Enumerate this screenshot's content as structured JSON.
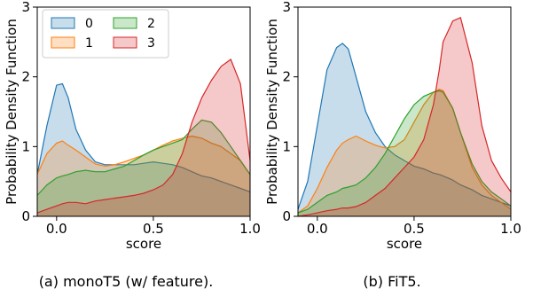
{
  "captions": [
    "(a) monoT5 (w/ feature).",
    "(b) FiT5."
  ],
  "chart_data": [
    {
      "type": "area",
      "subtitle": "(a) monoT5 (w/ feature).",
      "xlabel": "score",
      "ylabel": "Probability Density Function",
      "xlim": [
        -0.1,
        1.0
      ],
      "ylim": [
        0,
        3
      ],
      "xticks": [
        0.0,
        0.5,
        1.0
      ],
      "xtick_labels": [
        "0.0",
        "0.5",
        "1.0"
      ],
      "yticks": [
        0,
        1,
        2,
        3
      ],
      "ytick_labels": [
        "0",
        "1",
        "2",
        "3"
      ],
      "grid": false,
      "legend": {
        "placement": "top-left",
        "columns": 2,
        "entries": [
          "0",
          "1",
          "2",
          "3"
        ]
      },
      "x": [
        -0.1,
        -0.05,
        0.0,
        0.03,
        0.06,
        0.1,
        0.15,
        0.2,
        0.25,
        0.3,
        0.35,
        0.4,
        0.45,
        0.5,
        0.55,
        0.6,
        0.65,
        0.7,
        0.75,
        0.8,
        0.85,
        0.9,
        0.95,
        1.0
      ],
      "series": [
        {
          "name": "0",
          "color": "#1f77b4",
          "values": [
            0.6,
            1.3,
            1.88,
            1.9,
            1.7,
            1.25,
            0.95,
            0.78,
            0.74,
            0.74,
            0.74,
            0.74,
            0.76,
            0.78,
            0.76,
            0.74,
            0.7,
            0.64,
            0.58,
            0.55,
            0.5,
            0.45,
            0.4,
            0.35
          ]
        },
        {
          "name": "1",
          "color": "#ff7f0e",
          "values": [
            0.6,
            0.9,
            1.05,
            1.08,
            1.02,
            0.95,
            0.85,
            0.75,
            0.72,
            0.74,
            0.78,
            0.83,
            0.88,
            0.95,
            1.02,
            1.08,
            1.12,
            1.15,
            1.12,
            1.05,
            1.0,
            0.9,
            0.8,
            0.6
          ]
        },
        {
          "name": "2",
          "color": "#2ca02c",
          "values": [
            0.3,
            0.45,
            0.55,
            0.58,
            0.6,
            0.64,
            0.66,
            0.64,
            0.64,
            0.68,
            0.72,
            0.8,
            0.88,
            0.95,
            1.0,
            1.05,
            1.1,
            1.25,
            1.38,
            1.35,
            1.2,
            1.0,
            0.8,
            0.6
          ]
        },
        {
          "name": "3",
          "color": "#d62728",
          "values": [
            0.05,
            0.1,
            0.15,
            0.18,
            0.2,
            0.2,
            0.18,
            0.22,
            0.24,
            0.26,
            0.28,
            0.3,
            0.33,
            0.38,
            0.45,
            0.6,
            0.9,
            1.35,
            1.7,
            1.95,
            2.15,
            2.25,
            1.9,
            0.8
          ]
        }
      ]
    },
    {
      "type": "area",
      "subtitle": "(b) FiT5.",
      "xlabel": "score",
      "ylabel": "Probability Density Function",
      "xlim": [
        -0.1,
        1.0
      ],
      "ylim": [
        0,
        3
      ],
      "xticks": [
        0.0,
        0.5,
        1.0
      ],
      "xtick_labels": [
        "0.0",
        "0.5",
        "1.0"
      ],
      "yticks": [
        0,
        1,
        2,
        3
      ],
      "ytick_labels": [
        "0",
        "1",
        "2",
        "3"
      ],
      "grid": false,
      "x": [
        -0.1,
        -0.05,
        0.0,
        0.05,
        0.1,
        0.13,
        0.16,
        0.2,
        0.25,
        0.3,
        0.35,
        0.4,
        0.45,
        0.5,
        0.55,
        0.6,
        0.63,
        0.65,
        0.7,
        0.74,
        0.8,
        0.85,
        0.9,
        0.95,
        1.0
      ],
      "series": [
        {
          "name": "0",
          "color": "#1f77b4",
          "values": [
            0.1,
            0.5,
            1.3,
            2.1,
            2.42,
            2.48,
            2.4,
            2.0,
            1.5,
            1.2,
            1.0,
            0.88,
            0.8,
            0.72,
            0.68,
            0.62,
            0.6,
            0.58,
            0.52,
            0.45,
            0.38,
            0.3,
            0.25,
            0.2,
            0.15
          ]
        },
        {
          "name": "1",
          "color": "#ff7f0e",
          "values": [
            0.05,
            0.15,
            0.4,
            0.7,
            0.95,
            1.05,
            1.1,
            1.15,
            1.08,
            1.02,
            0.98,
            1.0,
            1.1,
            1.35,
            1.6,
            1.78,
            1.82,
            1.8,
            1.55,
            1.2,
            0.7,
            0.45,
            0.3,
            0.2,
            0.1
          ]
        },
        {
          "name": "2",
          "color": "#2ca02c",
          "values": [
            0.05,
            0.1,
            0.2,
            0.3,
            0.35,
            0.4,
            0.42,
            0.45,
            0.55,
            0.7,
            0.9,
            1.15,
            1.4,
            1.6,
            1.72,
            1.78,
            1.8,
            1.78,
            1.55,
            1.2,
            0.75,
            0.5,
            0.35,
            0.25,
            0.15
          ]
        },
        {
          "name": "3",
          "color": "#d62728",
          "values": [
            0.0,
            0.02,
            0.05,
            0.08,
            0.1,
            0.12,
            0.12,
            0.14,
            0.2,
            0.3,
            0.4,
            0.55,
            0.7,
            0.85,
            1.1,
            1.6,
            2.1,
            2.5,
            2.8,
            2.85,
            2.2,
            1.3,
            0.8,
            0.55,
            0.35
          ]
        }
      ]
    }
  ]
}
